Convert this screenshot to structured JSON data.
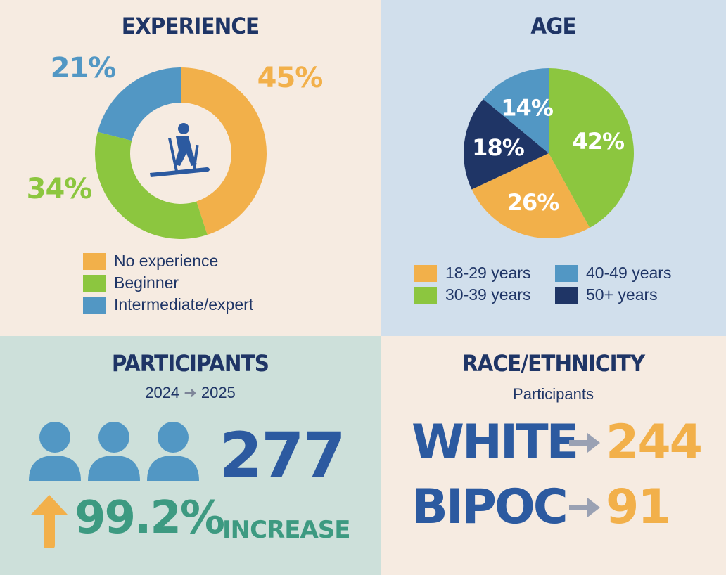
{
  "colors": {
    "orange": "#f2b04a",
    "green": "#8cc63f",
    "blue": "#5297c4",
    "navy": "#1f3566",
    "teal": "#3d9a81",
    "royal": "#2c5aa0",
    "arrow": "#9aa1b3"
  },
  "experience": {
    "title": "EXPERIENCE",
    "icon": "skier-icon",
    "chart_data": {
      "type": "pie",
      "title": "EXPERIENCE",
      "categories": [
        "No experience",
        "Beginner",
        "Intermediate/expert"
      ],
      "values": [
        45,
        34,
        21
      ],
      "labels": [
        "45%",
        "34%",
        "21%"
      ]
    }
  },
  "age": {
    "title": "AGE",
    "chart_data": {
      "type": "pie",
      "title": "AGE",
      "categories": [
        "30-39 years",
        "18-29 years",
        "50+ years",
        "40-49 years"
      ],
      "values": [
        42,
        26,
        18,
        14
      ],
      "labels": [
        "42%",
        "26%",
        "18%",
        "14%"
      ]
    },
    "legend": [
      "18-29 years",
      "40-49 years",
      "30-39 years",
      "50+ years"
    ]
  },
  "participants": {
    "title": "PARTICIPANTS",
    "year_from": "2024",
    "year_to": "2025",
    "total": "277",
    "increase_value": "99.2%",
    "increase_label": "INCREASE"
  },
  "race": {
    "title": "RACE/ETHNICITY",
    "subtitle": "Participants",
    "rows": [
      {
        "label": "WHITE",
        "value": "244"
      },
      {
        "label": "BIPOC",
        "value": "91"
      }
    ]
  }
}
